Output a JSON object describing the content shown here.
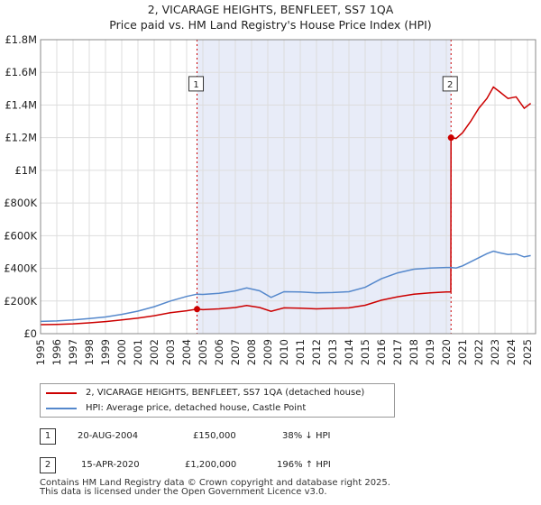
{
  "title_line1": "2, VICARAGE HEIGHTS, BENFLEET, SS7 1QA",
  "title_line2": "Price paid vs. HM Land Registry's House Price Index (HPI)",
  "chart_data": {
    "type": "line",
    "title": "2, VICARAGE HEIGHTS, BENFLEET, SS7 1QA — Price paid vs. HM Land Registry's House Price Index (HPI)",
    "xlabel": "",
    "ylabel": "",
    "xlim": [
      1995,
      2025.5
    ],
    "ylim": [
      0,
      1800000
    ],
    "x_ticks": [
      1995,
      1996,
      1997,
      1998,
      1999,
      2000,
      2001,
      2002,
      2003,
      2004,
      2005,
      2006,
      2007,
      2008,
      2009,
      2010,
      2011,
      2012,
      2013,
      2014,
      2015,
      2016,
      2017,
      2018,
      2019,
      2020,
      2021,
      2022,
      2023,
      2024,
      2025
    ],
    "y_ticks": [
      {
        "value": 0,
        "label": "£0"
      },
      {
        "value": 200000,
        "label": "£200K"
      },
      {
        "value": 400000,
        "label": "£400K"
      },
      {
        "value": 600000,
        "label": "£600K"
      },
      {
        "value": 800000,
        "label": "£800K"
      },
      {
        "value": 1000000,
        "label": "£1M"
      },
      {
        "value": 1200000,
        "label": "£1.2M"
      },
      {
        "value": 1400000,
        "label": "£1.4M"
      },
      {
        "value": 1600000,
        "label": "£1.6M"
      },
      {
        "value": 1800000,
        "label": "£1.8M"
      }
    ],
    "grid": true,
    "shaded_period": [
      2004.64,
      2020.29
    ],
    "series": [
      {
        "name": "2, VICARAGE HEIGHTS, BENFLEET, SS7 1QA (detached house)",
        "color": "#cc0000",
        "x": [
          1995.0,
          1996.0,
          1997.0,
          1998.0,
          1999.0,
          2000.0,
          2001.0,
          2002.0,
          2003.0,
          2004.0,
          2004.64,
          2005.0,
          2006.0,
          2007.0,
          2007.7,
          2008.5,
          2009.2,
          2010.0,
          2011.0,
          2012.0,
          2013.0,
          2014.0,
          2015.0,
          2016.0,
          2017.0,
          2018.0,
          2019.0,
          2020.0,
          2020.28,
          2020.29,
          2020.6,
          2021.0,
          2021.5,
          2022.0,
          2022.5,
          2022.9,
          2023.3,
          2023.8,
          2024.3,
          2024.8,
          2025.2
        ],
        "values": [
          55000,
          57000,
          60000,
          66000,
          74000,
          84000,
          95000,
          110000,
          128000,
          140000,
          150000,
          147000,
          152000,
          160000,
          172000,
          160000,
          137000,
          158000,
          156000,
          152000,
          155000,
          158000,
          174000,
          205000,
          226000,
          242000,
          250000,
          255000,
          255000,
          1200000,
          1195000,
          1230000,
          1300000,
          1380000,
          1440000,
          1510000,
          1480000,
          1440000,
          1450000,
          1380000,
          1410000
        ]
      },
      {
        "name": "HPI: Average price, detached house, Castle Point",
        "color": "#5588cc",
        "x": [
          1995.0,
          1996.0,
          1997.0,
          1998.0,
          1999.0,
          2000.0,
          2001.0,
          2002.0,
          2003.0,
          2004.0,
          2004.64,
          2005.0,
          2006.0,
          2007.0,
          2007.7,
          2008.5,
          2009.2,
          2010.0,
          2011.0,
          2012.0,
          2013.0,
          2014.0,
          2015.0,
          2016.0,
          2017.0,
          2018.0,
          2019.0,
          2020.0,
          2020.29,
          2020.6,
          2021.0,
          2021.5,
          2022.0,
          2022.5,
          2022.9,
          2023.3,
          2023.8,
          2024.3,
          2024.8,
          2025.2
        ],
        "values": [
          75000,
          78000,
          84000,
          92000,
          102000,
          118000,
          138000,
          165000,
          200000,
          228000,
          242000,
          240000,
          247000,
          262000,
          280000,
          262000,
          222000,
          257000,
          255000,
          250000,
          252000,
          257000,
          284000,
          336000,
          372000,
          395000,
          402000,
          405000,
          405000,
          402000,
          415000,
          440000,
          465000,
          490000,
          505000,
          495000,
          485000,
          488000,
          470000,
          478000
        ]
      }
    ],
    "sales": [
      {
        "marker": "1",
        "x": 2004.64,
        "price": 150000
      },
      {
        "marker": "2",
        "x": 2020.29,
        "price": 1200000
      }
    ],
    "marker_label_value": 1530000
  },
  "legend": {
    "property_label": "2, VICARAGE HEIGHTS, BENFLEET, SS7 1QA (detached house)",
    "hpi_label": "HPI: Average price, detached house, Castle Point"
  },
  "transactions": [
    {
      "marker": "1",
      "date": "20-AUG-2004",
      "price": "£150,000",
      "hpi": "38% ↓ HPI"
    },
    {
      "marker": "2",
      "date": "15-APR-2020",
      "price": "£1,200,000",
      "hpi": "196% ↑ HPI"
    }
  ],
  "footer_line1": "Contains HM Land Registry data © Crown copyright and database right 2025.",
  "footer_line2": "This data is licensed under the Open Government Licence v3.0.",
  "colors": {
    "property": "#cc0000",
    "hpi": "#5588cc",
    "shade": "#e8ecf8",
    "grid": "#dddddd"
  }
}
